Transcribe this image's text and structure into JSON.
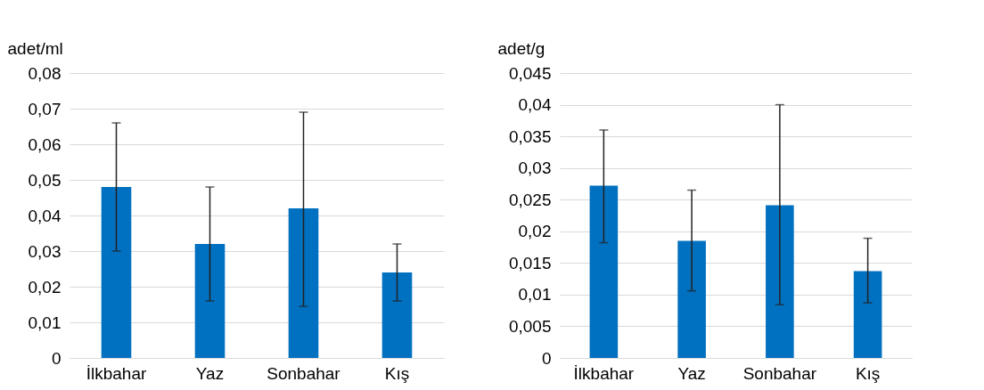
{
  "chart_data": [
    {
      "type": "bar",
      "ylabel": "adet/ml",
      "categories": [
        "İlkbahar",
        "Yaz",
        "Sonbahar",
        "Kış"
      ],
      "values": [
        0.048,
        0.032,
        0.042,
        0.024
      ],
      "color": "#0070c0",
      "errors": [
        [
          0.03,
          0.066
        ],
        [
          0.016,
          0.048
        ],
        [
          0.0145,
          0.069
        ],
        [
          0.016,
          0.032
        ]
      ],
      "ylim": [
        0,
        0.08
      ],
      "yticks": [
        {
          "value": 0,
          "label": "0"
        },
        {
          "value": 0.01,
          "label": "0,01"
        },
        {
          "value": 0.02,
          "label": "0,02"
        },
        {
          "value": 0.03,
          "label": "0,03"
        },
        {
          "value": 0.04,
          "label": "0,04"
        },
        {
          "value": 0.05,
          "label": "0,05"
        },
        {
          "value": 0.06,
          "label": "0,06"
        },
        {
          "value": 0.07,
          "label": "0,07"
        },
        {
          "value": 0.08,
          "label": "0,08"
        }
      ],
      "grid": "y"
    },
    {
      "type": "bar",
      "ylabel": "adet/g",
      "categories": [
        "İlkbahar",
        "Yaz",
        "Sonbahar",
        "Kış"
      ],
      "values": [
        0.0272,
        0.0185,
        0.0241,
        0.0137
      ],
      "color": "#0070c0",
      "errors": [
        [
          0.0182,
          0.036
        ],
        [
          0.0106,
          0.0265
        ],
        [
          0.0084,
          0.04
        ],
        [
          0.0087,
          0.0189
        ]
      ],
      "ylim": [
        0,
        0.045
      ],
      "yticks": [
        {
          "value": 0,
          "label": "0"
        },
        {
          "value": 0.005,
          "label": "0,005"
        },
        {
          "value": 0.01,
          "label": "0,01"
        },
        {
          "value": 0.015,
          "label": "0,015"
        },
        {
          "value": 0.02,
          "label": "0,02"
        },
        {
          "value": 0.025,
          "label": "0,025"
        },
        {
          "value": 0.03,
          "label": "0,03"
        },
        {
          "value": 0.035,
          "label": "0,035"
        },
        {
          "value": 0.04,
          "label": "0,04"
        },
        {
          "value": 0.045,
          "label": "0,045"
        }
      ],
      "grid": "y"
    }
  ]
}
